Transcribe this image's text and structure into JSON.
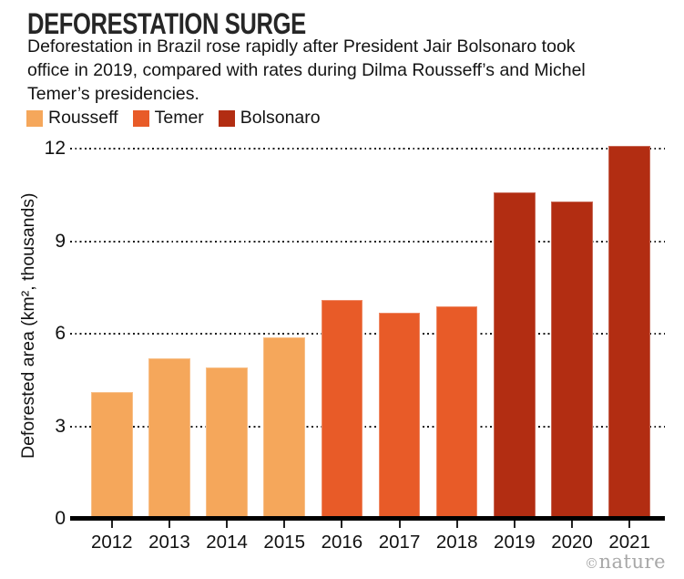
{
  "header": {
    "title": "DEFORESTATION SURGE",
    "subtitle_lines": [
      "Deforestation in Brazil rose rapidly after President Jair Bolsonaro took",
      "office in 2019, compared with rates during Dilma Rousseff’s and Michel",
      "Temer’s presidencies."
    ]
  },
  "legend": {
    "items": [
      {
        "label": "Rousseff",
        "color": "#F5A75B"
      },
      {
        "label": "Temer",
        "color": "#E85B28"
      },
      {
        "label": "Bolsonaro",
        "color": "#B22D12"
      }
    ]
  },
  "chart_data": {
    "type": "bar",
    "title": "DEFORESTATION SURGE",
    "categories": [
      "2012",
      "2013",
      "2014",
      "2015",
      "2016",
      "2017",
      "2018",
      "2019",
      "2020",
      "2021"
    ],
    "values": [
      4.1,
      5.2,
      4.9,
      5.9,
      7.1,
      6.7,
      6.9,
      10.6,
      10.3,
      12.1
    ],
    "bar_presidents": [
      "Rousseff",
      "Rousseff",
      "Rousseff",
      "Rousseff",
      "Temer",
      "Temer",
      "Temer",
      "Bolsonaro",
      "Bolsonaro",
      "Bolsonaro"
    ],
    "group_colors": {
      "Rousseff": "#F5A75B",
      "Temer": "#E85B28",
      "Bolsonaro": "#B22D12"
    },
    "series": [
      {
        "name": "Rousseff",
        "years": [
          "2012",
          "2013",
          "2014",
          "2015"
        ],
        "values": [
          4.1,
          5.2,
          4.9,
          5.9
        ],
        "color": "#F5A75B"
      },
      {
        "name": "Temer",
        "years": [
          "2016",
          "2017",
          "2018"
        ],
        "values": [
          7.1,
          6.7,
          6.9
        ],
        "color": "#E85B28"
      },
      {
        "name": "Bolsonaro",
        "years": [
          "2019",
          "2020",
          "2021"
        ],
        "values": [
          10.6,
          10.3,
          12.1
        ],
        "color": "#B22D12"
      }
    ],
    "xlabel": "",
    "ylabel": "Deforested area (km², thousands)",
    "yticks": [
      0,
      3,
      6,
      9,
      12
    ],
    "ylim": [
      0,
      12.5
    ],
    "grid": "horizontal dotted lines at 3, 6, 9, 12; solid black baseline at 0",
    "legend_position": "top-left"
  },
  "footer": {
    "credit_symbol": "©",
    "credit_name": "nature"
  }
}
